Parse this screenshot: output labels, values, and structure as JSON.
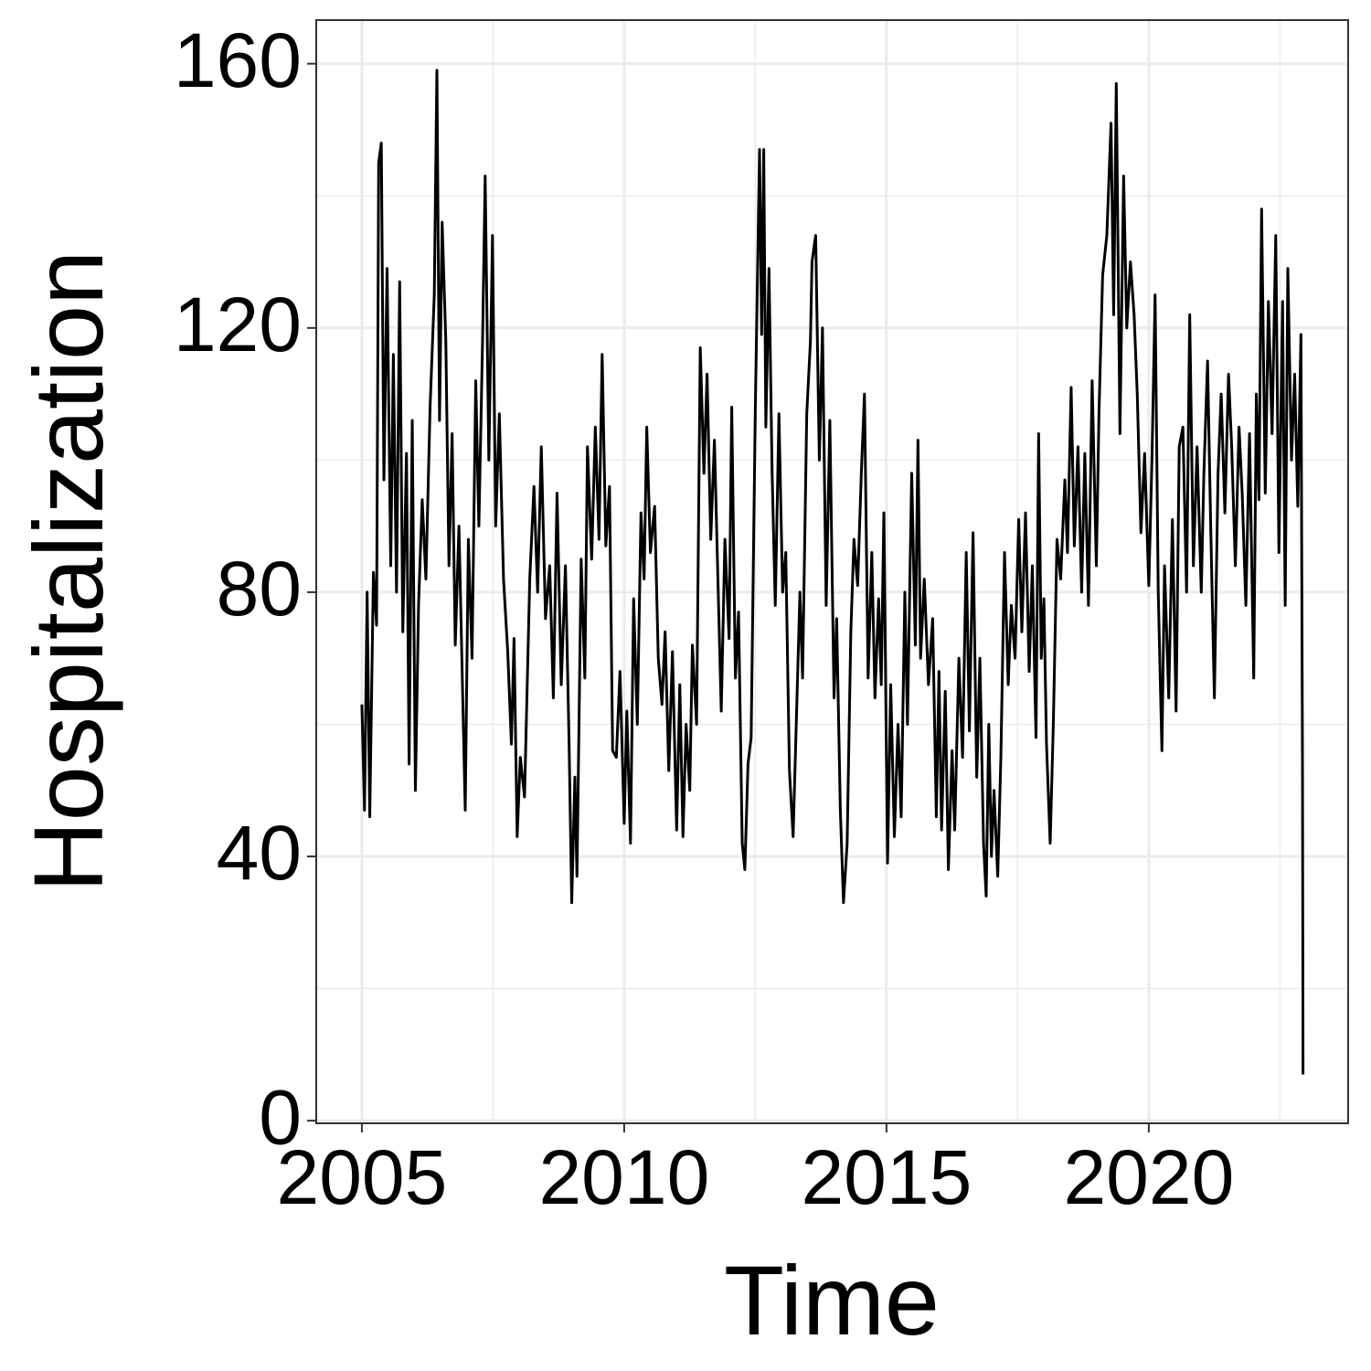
{
  "chart_data": {
    "type": "line",
    "x_label": "Time",
    "y_label": "Hospitalization",
    "xlim": [
      2004.13,
      2023.8
    ],
    "ylim": [
      -0.4,
      166.6
    ],
    "xticks": [
      2005,
      2010,
      2015,
      2020
    ],
    "yticks": [
      0,
      40,
      80,
      120,
      160
    ],
    "xminor": [
      2007.5,
      2012.5,
      2017.5,
      2022.5
    ],
    "yminor": [
      20,
      60,
      100,
      140
    ],
    "grid": true,
    "color": "#000000",
    "x": [
      2005.0,
      2005.05,
      2005.1,
      2005.15,
      2005.22,
      2005.28,
      2005.32,
      2005.37,
      2005.42,
      2005.48,
      2005.55,
      2005.6,
      2005.66,
      2005.72,
      2005.78,
      2005.85,
      2005.9,
      2005.96,
      2006.02,
      2006.08,
      2006.15,
      2006.22,
      2006.3,
      2006.38,
      2006.43,
      2006.48,
      2006.53,
      2006.6,
      2006.66,
      2006.72,
      2006.78,
      2006.85,
      2006.97,
      2007.03,
      2007.1,
      2007.17,
      2007.23,
      2007.3,
      2007.35,
      2007.42,
      2007.49,
      2007.55,
      2007.62,
      2007.7,
      2007.78,
      2007.85,
      2007.9,
      2007.96,
      2008.02,
      2008.1,
      2008.2,
      2008.28,
      2008.35,
      2008.42,
      2008.5,
      2008.58,
      2008.65,
      2008.72,
      2008.8,
      2008.88,
      2008.95,
      2009.0,
      2009.06,
      2009.1,
      2009.18,
      2009.25,
      2009.3,
      2009.38,
      2009.45,
      2009.52,
      2009.58,
      2009.65,
      2009.72,
      2009.78,
      2009.85,
      2009.92,
      2010.0,
      2010.05,
      2010.12,
      2010.18,
      2010.25,
      2010.32,
      2010.38,
      2010.43,
      2010.5,
      2010.58,
      2010.65,
      2010.72,
      2010.78,
      2010.85,
      2010.92,
      2011.0,
      2011.06,
      2011.12,
      2011.18,
      2011.25,
      2011.3,
      2011.38,
      2011.45,
      2011.52,
      2011.58,
      2011.65,
      2011.72,
      2011.78,
      2011.85,
      2011.92,
      2012.0,
      2012.05,
      2012.12,
      2012.18,
      2012.25,
      2012.3,
      2012.36,
      2012.42,
      2012.5,
      2012.58,
      2012.62,
      2012.66,
      2012.7,
      2012.76,
      2012.82,
      2012.88,
      2012.95,
      2013.02,
      2013.08,
      2013.15,
      2013.22,
      2013.28,
      2013.35,
      2013.4,
      2013.48,
      2013.55,
      2013.58,
      2013.65,
      2013.72,
      2013.78,
      2013.85,
      2013.92,
      2014.0,
      2014.05,
      2014.12,
      2014.18,
      2014.25,
      2014.32,
      2014.38,
      2014.45,
      2014.52,
      2014.58,
      2014.65,
      2014.72,
      2014.78,
      2014.85,
      2014.9,
      2014.95,
      2015.02,
      2015.08,
      2015.15,
      2015.22,
      2015.28,
      2015.35,
      2015.4,
      2015.48,
      2015.55,
      2015.6,
      2015.65,
      2015.72,
      2015.8,
      2015.88,
      2015.95,
      2016.0,
      2016.05,
      2016.12,
      2016.18,
      2016.25,
      2016.3,
      2016.38,
      2016.45,
      2016.52,
      2016.58,
      2016.65,
      2016.72,
      2016.78,
      2016.85,
      2016.9,
      2016.95,
      2017.0,
      2017.05,
      2017.12,
      2017.18,
      2017.25,
      2017.32,
      2017.38,
      2017.45,
      2017.52,
      2017.58,
      2017.65,
      2017.72,
      2017.78,
      2017.85,
      2017.9,
      2017.95,
      2018.0,
      2018.05,
      2018.12,
      2018.18,
      2018.25,
      2018.32,
      2018.4,
      2018.45,
      2018.52,
      2018.58,
      2018.65,
      2018.72,
      2018.78,
      2018.85,
      2018.92,
      2019.0,
      2019.05,
      2019.12,
      2019.2,
      2019.28,
      2019.33,
      2019.38,
      2019.45,
      2019.52,
      2019.58,
      2019.65,
      2019.72,
      2019.78,
      2019.85,
      2019.92,
      2020.0,
      2020.06,
      2020.12,
      2020.18,
      2020.25,
      2020.3,
      2020.38,
      2020.45,
      2020.52,
      2020.58,
      2020.65,
      2020.72,
      2020.78,
      2020.85,
      2020.92,
      2021.0,
      2021.05,
      2021.12,
      2021.18,
      2021.25,
      2021.32,
      2021.38,
      2021.45,
      2021.52,
      2021.58,
      2021.65,
      2021.72,
      2021.78,
      2021.85,
      2021.92,
      2022.0,
      2022.05,
      2022.1,
      2022.15,
      2022.22,
      2022.28,
      2022.35,
      2022.42,
      2022.48,
      2022.55,
      2022.6,
      2022.65,
      2022.72,
      2022.78,
      2022.84,
      2022.9,
      2022.93,
      2022.94
    ],
    "values": [
      63,
      47,
      80,
      46,
      83,
      75,
      145,
      148,
      97,
      129,
      84,
      116,
      80,
      127,
      74,
      101,
      54,
      106,
      50,
      78,
      94,
      82,
      108,
      125,
      159,
      106,
      136,
      118,
      84,
      104,
      72,
      90,
      47,
      88,
      70,
      112,
      90,
      118,
      143,
      100,
      134,
      90,
      107,
      82,
      71,
      57,
      73,
      43,
      55,
      49,
      82,
      96,
      80,
      102,
      76,
      84,
      64,
      95,
      66,
      84,
      57,
      33,
      52,
      37,
      85,
      67,
      102,
      85,
      105,
      88,
      116,
      87,
      96,
      56,
      55,
      68,
      45,
      62,
      42,
      79,
      60,
      92,
      82,
      105,
      86,
      93,
      70,
      63,
      74,
      53,
      71,
      44,
      66,
      43,
      60,
      50,
      72,
      60,
      117,
      98,
      113,
      88,
      103,
      84,
      62,
      88,
      73,
      108,
      67,
      77,
      42,
      38,
      54,
      58,
      108,
      147,
      119,
      147,
      105,
      129,
      98,
      78,
      107,
      80,
      86,
      53,
      43,
      60,
      80,
      67,
      107,
      118,
      130,
      134,
      100,
      120,
      78,
      106,
      64,
      76,
      47,
      33,
      42,
      74,
      88,
      81,
      98,
      110,
      67,
      86,
      64,
      79,
      66,
      92,
      39,
      66,
      43,
      60,
      46,
      80,
      60,
      98,
      72,
      103,
      70,
      82,
      66,
      76,
      46,
      68,
      44,
      65,
      38,
      56,
      44,
      70,
      55,
      86,
      59,
      89,
      52,
      70,
      42,
      34,
      60,
      40,
      50,
      37,
      55,
      86,
      66,
      78,
      70,
      91,
      74,
      92,
      68,
      84,
      58,
      104,
      70,
      79,
      57,
      42,
      60,
      88,
      82,
      97,
      86,
      111,
      87,
      102,
      80,
      101,
      78,
      112,
      84,
      107,
      128,
      134,
      151,
      122,
      157,
      104,
      143,
      120,
      130,
      122,
      110,
      89,
      101,
      81,
      100,
      125,
      80,
      56,
      84,
      64,
      91,
      62,
      102,
      105,
      80,
      122,
      84,
      102,
      80,
      98,
      115,
      90,
      64,
      98,
      110,
      92,
      113,
      102,
      84,
      105,
      95,
      78,
      104,
      67,
      110,
      94,
      138,
      95,
      124,
      104,
      134,
      86,
      124,
      78,
      129,
      100,
      113,
      93,
      119,
      53,
      7
    ]
  }
}
